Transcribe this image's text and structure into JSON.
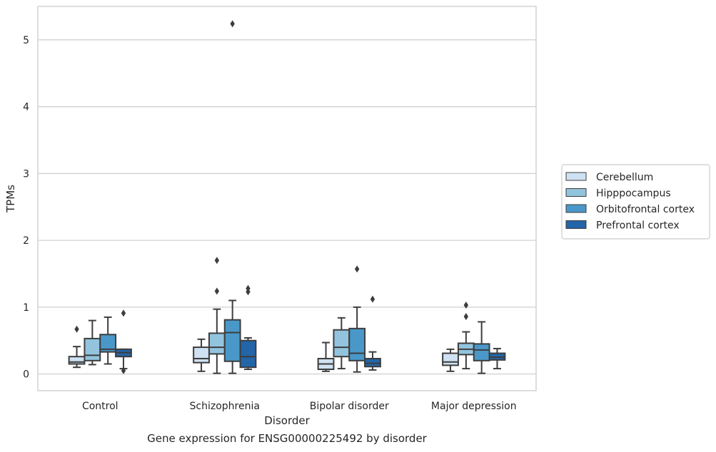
{
  "chart_data": {
    "type": "box",
    "xlabel": "Disorder",
    "ylabel": "TPMs",
    "caption": "Gene expression for ENSG00000225492 by disorder",
    "categories": [
      "Control",
      "Schizophrenia",
      "Bipolar disorder",
      "Major depression"
    ],
    "ylim": [
      -0.25,
      5.5
    ],
    "yticks": [
      0,
      1,
      2,
      3,
      4,
      5
    ],
    "grid": true,
    "legend_position": "right",
    "colors": [
      "#cfe1f2",
      "#93c4de",
      "#4a98c9",
      "#2265a8"
    ],
    "series": [
      {
        "name": "Cerebellum",
        "boxes": [
          {
            "whislo": 0.1,
            "q1": 0.15,
            "med": 0.18,
            "q3": 0.26,
            "whishi": 0.41,
            "fliers": [
              0.67
            ]
          },
          {
            "whislo": 0.04,
            "q1": 0.17,
            "med": 0.23,
            "q3": 0.4,
            "whishi": 0.52,
            "fliers": []
          },
          {
            "whislo": 0.04,
            "q1": 0.07,
            "med": 0.15,
            "q3": 0.23,
            "whishi": 0.47,
            "fliers": []
          },
          {
            "whislo": 0.04,
            "q1": 0.13,
            "med": 0.18,
            "q3": 0.31,
            "whishi": 0.37,
            "fliers": []
          }
        ]
      },
      {
        "name": "Hipppocampus",
        "boxes": [
          {
            "whislo": 0.14,
            "q1": 0.2,
            "med": 0.28,
            "q3": 0.53,
            "whishi": 0.8,
            "fliers": []
          },
          {
            "whislo": 0.01,
            "q1": 0.3,
            "med": 0.4,
            "q3": 0.61,
            "whishi": 0.97,
            "fliers": [
              1.24,
              1.7
            ]
          },
          {
            "whislo": 0.08,
            "q1": 0.26,
            "med": 0.4,
            "q3": 0.66,
            "whishi": 0.84,
            "fliers": []
          },
          {
            "whislo": 0.08,
            "q1": 0.29,
            "med": 0.37,
            "q3": 0.46,
            "whishi": 0.63,
            "fliers": [
              0.86,
              1.03
            ]
          }
        ]
      },
      {
        "name": "Orbitofrontal cortex",
        "boxes": [
          {
            "whislo": 0.15,
            "q1": 0.33,
            "med": 0.37,
            "q3": 0.59,
            "whishi": 0.85,
            "fliers": []
          },
          {
            "whislo": 0.01,
            "q1": 0.19,
            "med": 0.62,
            "q3": 0.81,
            "whishi": 1.1,
            "fliers": [
              5.24
            ]
          },
          {
            "whislo": 0.03,
            "q1": 0.2,
            "med": 0.31,
            "q3": 0.68,
            "whishi": 1.0,
            "fliers": [
              1.57
            ]
          },
          {
            "whislo": 0.01,
            "q1": 0.2,
            "med": 0.36,
            "q3": 0.45,
            "whishi": 0.78,
            "fliers": []
          }
        ]
      },
      {
        "name": "Prefrontal cortex",
        "boxes": [
          {
            "whislo": 0.08,
            "q1": 0.26,
            "med": 0.32,
            "q3": 0.37,
            "whishi": 0.37,
            "fliers": [
              0.05,
              0.91
            ]
          },
          {
            "whislo": 0.07,
            "q1": 0.1,
            "med": 0.26,
            "q3": 0.5,
            "whishi": 0.54,
            "fliers": [
              1.23,
              1.28
            ]
          },
          {
            "whislo": 0.06,
            "q1": 0.11,
            "med": 0.16,
            "q3": 0.23,
            "whishi": 0.33,
            "fliers": [
              1.12
            ]
          },
          {
            "whislo": 0.08,
            "q1": 0.21,
            "med": 0.25,
            "q3": 0.31,
            "whishi": 0.38,
            "fliers": []
          }
        ]
      }
    ]
  }
}
